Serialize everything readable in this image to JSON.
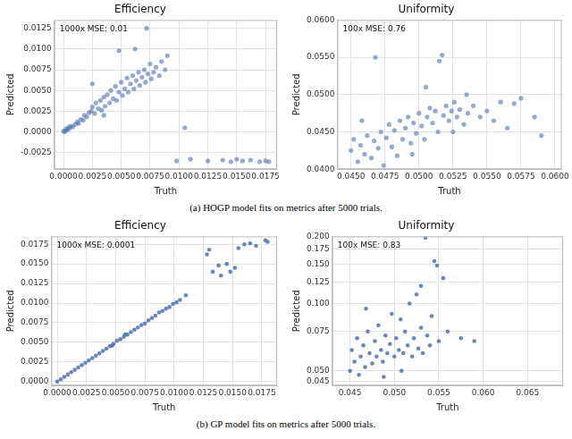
{
  "chart_data": [
    {
      "type": "scatter",
      "title": "Efficiency",
      "x_label": "Truth",
      "y_label": "Predicted",
      "annotation": "1000x MSE: 0.01",
      "color": "#4c72b0",
      "marker": "circle",
      "grid": true,
      "xlim": [
        -0.0008,
        0.0185
      ],
      "ylim": [
        -0.0045,
        0.0135
      ],
      "xticks": [
        {
          "value": 0,
          "label": "0.0000"
        },
        0.0025,
        {
          "value": 0.005,
          "label": "0.0050"
        },
        0.0075,
        {
          "value": 0.01,
          "label": "0.0100"
        },
        0.0125,
        {
          "value": 0.015,
          "label": "0.0150"
        },
        0.0175
      ],
      "yticks": [
        -0.0025,
        {
          "value": 0,
          "label": "0.0000"
        },
        0.0025,
        {
          "value": 0.005,
          "label": "0.0050"
        },
        0.0075,
        {
          "value": 0.01,
          "label": "0.0100"
        },
        0.0125
      ],
      "x": [
        0,
        0.0001,
        0.0002,
        0.0003,
        0.0004,
        0.0005,
        0.0006,
        0.0008,
        0.001,
        0.0012,
        0.0013,
        0.0015,
        0.0017,
        0.0018,
        0.002,
        0.0022,
        0.0024,
        0.0025,
        0.0027,
        0.0028,
        0.003,
        0.0032,
        0.0033,
        0.0035,
        0.0036,
        0.0038,
        0.004,
        0.0041,
        0.0043,
        0.0045,
        0.0046,
        0.0048,
        0.005,
        0.0051,
        0.0053,
        0.0055,
        0.0056,
        0.0058,
        0.006,
        0.0061,
        0.0063,
        0.0065,
        0.0066,
        0.0068,
        0.007,
        0.0071,
        0.0072,
        0.0073,
        0.0075,
        0.0076,
        0.0078,
        0.008,
        0.0083,
        0.0085,
        0.0088,
        0.009,
        0.0048,
        0.0062,
        0.0025,
        0.0035,
        0.0098,
        0.0105,
        0.011,
        0.0125,
        0.0138,
        0.0145,
        0.015,
        0.0155,
        0.0162,
        0.017,
        0.0175,
        0.0178
      ],
      "values": [
        0.0001,
        0,
        0.0003,
        0.0002,
        0.0005,
        0.0004,
        0.0007,
        0.0006,
        0.0009,
        0.0012,
        0.001,
        0.0015,
        0.0014,
        0.002,
        0.0018,
        0.0023,
        0.0025,
        0.003,
        0.0022,
        0.0035,
        0.0028,
        0.0038,
        0.0026,
        0.0042,
        0.0031,
        0.0045,
        0.0035,
        0.005,
        0.004,
        0.0055,
        0.0038,
        0.0048,
        0.006,
        0.0044,
        0.0052,
        0.0065,
        0.0048,
        0.0058,
        0.0068,
        0.0052,
        0.0062,
        0.0072,
        0.0056,
        0.0066,
        0.0075,
        0.006,
        0.0125,
        0.007,
        0.0082,
        0.0064,
        0.0072,
        0.0078,
        0.0068,
        0.0085,
        0.0075,
        0.0092,
        0.0098,
        0.01,
        0.0058,
        0.002,
        -0.0035,
        0.0005,
        -0.0033,
        -0.0035,
        -0.0034,
        -0.0036,
        -0.0033,
        -0.0035,
        -0.0034,
        -0.0036,
        -0.0035,
        -0.0036
      ]
    },
    {
      "type": "scatter",
      "title": "Uniformity",
      "x_label": "Truth",
      "y_label": "Predicted",
      "annotation": "100x MSE: 0.76",
      "color": "#4c72b0",
      "marker": "circle",
      "grid": true,
      "xlim": [
        0.044,
        0.0605
      ],
      "ylim": [
        0.04,
        0.06
      ],
      "xticks": [
        {
          "value": 0.045,
          "label": "0.0450"
        },
        0.0475,
        {
          "value": 0.05,
          "label": "0.0500"
        },
        0.0525,
        {
          "value": 0.055,
          "label": "0.0550"
        },
        0.0575,
        {
          "value": 0.06,
          "label": "0.0600"
        }
      ],
      "yticks": [
        {
          "value": 0.04,
          "label": "0.0400"
        },
        {
          "value": 0.045,
          "label": "0.0450"
        },
        {
          "value": 0.05,
          "label": "0.0500"
        },
        {
          "value": 0.055,
          "label": "0.0550"
        },
        {
          "value": 0.06,
          "label": "0.0600"
        }
      ],
      "x": [
        0.045,
        0.0452,
        0.0455,
        0.0457,
        0.046,
        0.0462,
        0.0465,
        0.0467,
        0.0468,
        0.047,
        0.0472,
        0.0474,
        0.0476,
        0.0478,
        0.048,
        0.0482,
        0.0484,
        0.0486,
        0.0488,
        0.049,
        0.0492,
        0.0494,
        0.0496,
        0.0498,
        0.05,
        0.0502,
        0.0504,
        0.0506,
        0.0508,
        0.051,
        0.0512,
        0.0514,
        0.0515,
        0.0517,
        0.0518,
        0.052,
        0.0522,
        0.0524,
        0.0526,
        0.0528,
        0.053,
        0.0533,
        0.0536,
        0.054,
        0.0545,
        0.055,
        0.0555,
        0.056,
        0.0565,
        0.057,
        0.0575,
        0.0585,
        0.059,
        0.0505,
        0.0495,
        0.0525,
        0.0535,
        0.0458
      ],
      "values": [
        0.0425,
        0.044,
        0.041,
        0.0432,
        0.042,
        0.0445,
        0.0415,
        0.0438,
        0.055,
        0.0428,
        0.045,
        0.0405,
        0.0442,
        0.046,
        0.043,
        0.0452,
        0.0418,
        0.0465,
        0.044,
        0.0455,
        0.047,
        0.0435,
        0.0462,
        0.0448,
        0.0475,
        0.0458,
        0.044,
        0.047,
        0.0482,
        0.0462,
        0.0478,
        0.045,
        0.0545,
        0.0553,
        0.0472,
        0.0485,
        0.0465,
        0.0478,
        0.049,
        0.047,
        0.048,
        0.046,
        0.0475,
        0.0485,
        0.047,
        0.0478,
        0.0465,
        0.049,
        0.0455,
        0.0488,
        0.0495,
        0.047,
        0.0445,
        0.051,
        0.042,
        0.045,
        0.05,
        0.0465
      ]
    },
    {
      "type": "scatter",
      "title": "Efficiency",
      "x_label": "Truth",
      "y_label": "Predicted",
      "annotation": "1000x MSE: 0.0001",
      "color": "#4c72b0",
      "marker": "circle",
      "grid": true,
      "xlim": [
        -0.0005,
        0.0188
      ],
      "ylim": [
        -0.0005,
        0.0185
      ],
      "xticks": [
        {
          "value": 0,
          "label": "0.0000"
        },
        0.0025,
        {
          "value": 0.005,
          "label": "0.0050"
        },
        0.0075,
        {
          "value": 0.01,
          "label": "0.0100"
        },
        0.0125,
        {
          "value": 0.015,
          "label": "0.0150"
        },
        0.0175
      ],
      "yticks": [
        {
          "value": 0,
          "label": "0.0000"
        },
        0.0025,
        {
          "value": 0.005,
          "label": "0.0050"
        },
        0.0075,
        {
          "value": 0.01,
          "label": "0.0100"
        },
        0.0125,
        {
          "value": 0.015,
          "label": "0.0150"
        },
        0.0175
      ],
      "x": [
        0,
        0.0003,
        0.0006,
        0.0009,
        0.0012,
        0.0015,
        0.0018,
        0.0021,
        0.0024,
        0.0027,
        0.003,
        0.0033,
        0.0036,
        0.0039,
        0.0042,
        0.0045,
        0.0048,
        0.0051,
        0.0054,
        0.0057,
        0.006,
        0.0063,
        0.0066,
        0.0069,
        0.0072,
        0.0075,
        0.0078,
        0.0081,
        0.0084,
        0.0087,
        0.009,
        0.0093,
        0.0096,
        0.0099,
        0.0102,
        0.0105,
        0.011,
        0.0128,
        0.013,
        0.0133,
        0.0138,
        0.014,
        0.0145,
        0.0148,
        0.0152,
        0.0155,
        0.016,
        0.0165,
        0.017,
        0.0178,
        0.018,
        0.0058,
        0.0047
      ],
      "values": [
        0,
        0.0003,
        0.0006,
        0.0009,
        0.0012,
        0.0015,
        0.0018,
        0.0021,
        0.0024,
        0.0027,
        0.003,
        0.0033,
        0.0036,
        0.0039,
        0.0042,
        0.0045,
        0.0048,
        0.0052,
        0.0054,
        0.0057,
        0.006,
        0.0063,
        0.0066,
        0.0069,
        0.0072,
        0.0074,
        0.0078,
        0.0081,
        0.0084,
        0.0088,
        0.009,
        0.0093,
        0.0095,
        0.0099,
        0.0101,
        0.0104,
        0.011,
        0.0162,
        0.0168,
        0.014,
        0.0148,
        0.0135,
        0.015,
        0.014,
        0.0145,
        0.017,
        0.0175,
        0.0176,
        0.0173,
        0.018,
        0.0178,
        0.006,
        0.0046
      ]
    },
    {
      "type": "scatter",
      "title": "Uniformity",
      "x_label": "Truth",
      "y_label": "Predicted",
      "annotation": "100x MSE: 0.83",
      "color": "#4c72b0",
      "marker": "circle",
      "grid": true,
      "log": "y",
      "xlim": [
        0.043,
        0.069
      ],
      "ylim": [
        0.043,
        0.2
      ],
      "xticks": [
        0.045,
        {
          "value": 0.05,
          "label": "0.050"
        },
        0.055,
        {
          "value": 0.06,
          "label": "0.060"
        },
        0.065
      ],
      "yticks": [
        0.045,
        {
          "value": 0.05,
          "label": "0.050"
        },
        0.075,
        {
          "value": 0.1,
          "label": "0.100"
        },
        0.125,
        {
          "value": 0.15,
          "label": "0.150"
        },
        0.175,
        {
          "value": 0.2,
          "label": "0.200"
        }
      ],
      "x": [
        0.045,
        0.0452,
        0.0455,
        0.0458,
        0.046,
        0.0462,
        0.0465,
        0.0467,
        0.047,
        0.0472,
        0.0475,
        0.0478,
        0.048,
        0.0482,
        0.0485,
        0.0487,
        0.049,
        0.0492,
        0.0495,
        0.0497,
        0.05,
        0.0502,
        0.0505,
        0.0507,
        0.051,
        0.0512,
        0.0515,
        0.0517,
        0.052,
        0.0522,
        0.0525,
        0.0527,
        0.053,
        0.0532,
        0.0535,
        0.0537,
        0.054,
        0.0542,
        0.0545,
        0.0548,
        0.055,
        0.0555,
        0.056,
        0.0575,
        0.059,
        0.0488,
        0.0508,
        0.0468,
        0.053
      ],
      "values": [
        0.05,
        0.062,
        0.055,
        0.07,
        0.048,
        0.058,
        0.065,
        0.052,
        0.075,
        0.06,
        0.054,
        0.068,
        0.058,
        0.08,
        0.062,
        0.055,
        0.072,
        0.06,
        0.066,
        0.09,
        0.058,
        0.07,
        0.062,
        0.085,
        0.06,
        0.075,
        0.065,
        0.1,
        0.058,
        0.07,
        0.11,
        0.063,
        0.078,
        0.06,
        0.197,
        0.072,
        0.065,
        0.088,
        0.155,
        0.148,
        0.068,
        0.13,
        0.075,
        0.07,
        0.068,
        0.047,
        0.05,
        0.095,
        0.12
      ]
    }
  ],
  "captions": [
    "(a) HOGP model fits on metrics after 5000 trials.",
    "(b) GP model fits on metrics after 5000 trials."
  ]
}
